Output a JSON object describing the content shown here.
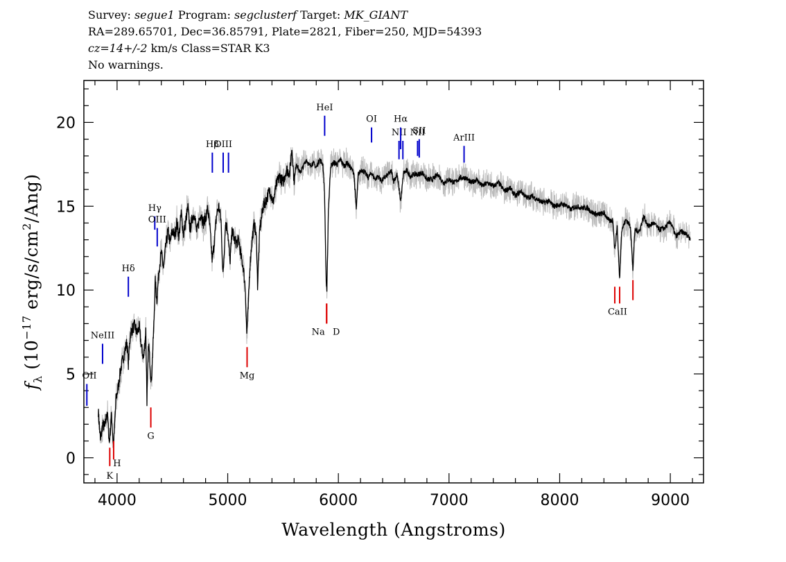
{
  "header": {
    "line1_a": "Survey: ",
    "survey": "segue1",
    "line1_b": " Program: ",
    "program": "segclusterf",
    "line1_c": " Target: ",
    "target": "MK_GIANT",
    "line2": "RA=289.65701, Dec=36.85791, Plate=2821, Fiber=250, MJD=54393",
    "line3_redshift": "cz=14+/-2",
    "line3_rest": " km/s Class=STAR K3",
    "line4": "No warnings."
  },
  "chart_data": {
    "type": "line",
    "xlabel": "Wavelength (Angstroms)",
    "ylabel_prefix": "f",
    "ylabel_sub": "λ",
    "ylabel_mid": " (10",
    "ylabel_exp": "−17",
    "ylabel_units": " erg/s/cm",
    "ylabel_sq": "2",
    "ylabel_end": "/Ang)",
    "xlim": [
      3700,
      9300
    ],
    "ylim": [
      -1.5,
      22.5
    ],
    "x_ticks": [
      4000,
      5000,
      6000,
      7000,
      8000,
      9000
    ],
    "y_ticks": [
      0,
      5,
      10,
      15,
      20
    ],
    "x_minor_step": 200,
    "y_minor_step": 1,
    "colors": {
      "spectrum": "#000000",
      "error": "#bbbbbb",
      "emission": "#0000cc",
      "absorption": "#dd0000"
    },
    "spectrum": [
      [
        3830,
        2.8
      ],
      [
        3850,
        1.0
      ],
      [
        3870,
        2.0
      ],
      [
        3890,
        1.8
      ],
      [
        3910,
        2.8
      ],
      [
        3930,
        0.9
      ],
      [
        3950,
        2.6
      ],
      [
        3968,
        0.6
      ],
      [
        3990,
        3.5
      ],
      [
        4010,
        4.2
      ],
      [
        4030,
        5.2
      ],
      [
        4050,
        5.8
      ],
      [
        4070,
        6.4
      ],
      [
        4090,
        6.9
      ],
      [
        4102,
        5.6
      ],
      [
        4120,
        7.4
      ],
      [
        4140,
        7.7
      ],
      [
        4160,
        7.9
      ],
      [
        4180,
        7.4
      ],
      [
        4200,
        7.8
      ],
      [
        4220,
        6.6
      ],
      [
        4240,
        5.9
      ],
      [
        4260,
        7.6
      ],
      [
        4270,
        3.4
      ],
      [
        4285,
        6.8
      ],
      [
        4300,
        5.4
      ],
      [
        4310,
        4.5
      ],
      [
        4330,
        7.5
      ],
      [
        4345,
        10.5
      ],
      [
        4360,
        9.4
      ],
      [
        4380,
        11.3
      ],
      [
        4400,
        12.2
      ],
      [
        4420,
        11.3
      ],
      [
        4440,
        12.6
      ],
      [
        4460,
        13.5
      ],
      [
        4480,
        12.8
      ],
      [
        4500,
        13.6
      ],
      [
        4520,
        13.2
      ],
      [
        4540,
        14.0
      ],
      [
        4560,
        13.2
      ],
      [
        4580,
        14.6
      ],
      [
        4600,
        13.3
      ],
      [
        4620,
        14.1
      ],
      [
        4640,
        14.9
      ],
      [
        4660,
        13.6
      ],
      [
        4680,
        14.3
      ],
      [
        4700,
        14.6
      ],
      [
        4720,
        13.4
      ],
      [
        4740,
        14.1
      ],
      [
        4760,
        14.6
      ],
      [
        4780,
        14.0
      ],
      [
        4800,
        14.3
      ],
      [
        4820,
        14.9
      ],
      [
        4840,
        13.6
      ],
      [
        4861,
        11.7
      ],
      [
        4880,
        13.0
      ],
      [
        4900,
        14.5
      ],
      [
        4920,
        15.0
      ],
      [
        4940,
        14.1
      ],
      [
        4957,
        10.8
      ],
      [
        4980,
        14.0
      ],
      [
        5000,
        13.6
      ],
      [
        5020,
        11.6
      ],
      [
        5040,
        13.6
      ],
      [
        5060,
        13.0
      ],
      [
        5080,
        12.8
      ],
      [
        5100,
        13.0
      ],
      [
        5120,
        12.0
      ],
      [
        5140,
        11.4
      ],
      [
        5160,
        10.0
      ],
      [
        5172,
        7.4
      ],
      [
        5183,
        8.6
      ],
      [
        5200,
        11.4
      ],
      [
        5220,
        13.0
      ],
      [
        5240,
        14.0
      ],
      [
        5260,
        13.0
      ],
      [
        5270,
        10.3
      ],
      [
        5290,
        13.6
      ],
      [
        5320,
        15.0
      ],
      [
        5350,
        15.4
      ],
      [
        5380,
        16.0
      ],
      [
        5410,
        15.2
      ],
      [
        5440,
        16.3
      ],
      [
        5470,
        16.8
      ],
      [
        5500,
        16.4
      ],
      [
        5530,
        17.2
      ],
      [
        5560,
        17.0
      ],
      [
        5580,
        18.5
      ],
      [
        5600,
        16.4
      ],
      [
        5620,
        17.6
      ],
      [
        5650,
        17.0
      ],
      [
        5680,
        17.3
      ],
      [
        5710,
        17.8
      ],
      [
        5740,
        17.4
      ],
      [
        5770,
        17.6
      ],
      [
        5800,
        17.3
      ],
      [
        5830,
        17.8
      ],
      [
        5860,
        17.5
      ],
      [
        5875,
        15.8
      ],
      [
        5890,
        10.5
      ],
      [
        5896,
        9.8
      ],
      [
        5910,
        14.8
      ],
      [
        5930,
        17.4
      ],
      [
        5960,
        17.6
      ],
      [
        5990,
        17.5
      ],
      [
        6020,
        17.8
      ],
      [
        6050,
        17.4
      ],
      [
        6080,
        17.6
      ],
      [
        6110,
        17.3
      ],
      [
        6140,
        17.0
      ],
      [
        6162,
        14.8
      ],
      [
        6180,
        16.9
      ],
      [
        6210,
        17.2
      ],
      [
        6240,
        17.0
      ],
      [
        6270,
        16.7
      ],
      [
        6300,
        17.0
      ],
      [
        6330,
        16.6
      ],
      [
        6360,
        16.8
      ],
      [
        6390,
        16.5
      ],
      [
        6420,
        16.7
      ],
      [
        6450,
        16.9
      ],
      [
        6480,
        17.1
      ],
      [
        6500,
        16.5
      ],
      [
        6530,
        16.9
      ],
      [
        6563,
        15.3
      ],
      [
        6590,
        17.0
      ],
      [
        6620,
        17.1
      ],
      [
        6650,
        16.8
      ],
      [
        6680,
        16.9
      ],
      [
        6720,
        16.9
      ],
      [
        6760,
        17.0
      ],
      [
        6800,
        16.6
      ],
      [
        6850,
        16.6
      ],
      [
        6900,
        16.9
      ],
      [
        6950,
        16.4
      ],
      [
        7000,
        16.6
      ],
      [
        7050,
        16.4
      ],
      [
        7100,
        16.7
      ],
      [
        7150,
        16.7
      ],
      [
        7200,
        16.4
      ],
      [
        7250,
        16.6
      ],
      [
        7300,
        16.2
      ],
      [
        7350,
        16.4
      ],
      [
        7400,
        16.2
      ],
      [
        7450,
        16.4
      ],
      [
        7500,
        15.9
      ],
      [
        7550,
        16.1
      ],
      [
        7600,
        15.6
      ],
      [
        7650,
        15.9
      ],
      [
        7700,
        15.5
      ],
      [
        7750,
        15.6
      ],
      [
        7800,
        15.4
      ],
      [
        7850,
        15.2
      ],
      [
        7900,
        15.3
      ],
      [
        7950,
        15.0
      ],
      [
        8000,
        15.1
      ],
      [
        8050,
        15.1
      ],
      [
        8100,
        14.8
      ],
      [
        8150,
        15.0
      ],
      [
        8200,
        14.9
      ],
      [
        8250,
        14.9
      ],
      [
        8300,
        14.6
      ],
      [
        8350,
        14.5
      ],
      [
        8400,
        14.6
      ],
      [
        8450,
        14.1
      ],
      [
        8480,
        14.2
      ],
      [
        8498,
        12.4
      ],
      [
        8520,
        13.8
      ],
      [
        8542,
        10.6
      ],
      [
        8560,
        13.6
      ],
      [
        8600,
        14.2
      ],
      [
        8640,
        13.8
      ],
      [
        8662,
        11.2
      ],
      [
        8680,
        13.6
      ],
      [
        8720,
        13.5
      ],
      [
        8760,
        14.4
      ],
      [
        8800,
        13.8
      ],
      [
        8850,
        14.0
      ],
      [
        8900,
        13.6
      ],
      [
        8950,
        13.7
      ],
      [
        9000,
        14.1
      ],
      [
        9050,
        13.2
      ],
      [
        9100,
        13.5
      ],
      [
        9150,
        13.3
      ],
      [
        9180,
        13.1
      ]
    ],
    "emission_lines": [
      {
        "label": "OII",
        "wave": 3727,
        "y": [
          3.1,
          4.4
        ]
      },
      {
        "label": "NeIII",
        "wave": 3869,
        "y": [
          5.6,
          6.8
        ]
      },
      {
        "label": "Hδ",
        "wave": 4102,
        "y": [
          9.6,
          10.8
        ]
      },
      {
        "label": "Hγ",
        "wave": 4341,
        "y": [
          13.6,
          14.4
        ]
      },
      {
        "label": "OIII",
        "wave": 4363,
        "y": [
          12.6,
          13.7
        ]
      },
      {
        "label": "Hβ",
        "wave": 4861,
        "y": [
          17.0,
          18.2
        ]
      },
      {
        "label": "OIII",
        "wave": 4959,
        "y": [
          17.0,
          18.2
        ]
      },
      {
        "label": "",
        "wave": 5007,
        "y": [
          17.0,
          18.2
        ]
      },
      {
        "label": "HeI",
        "wave": 5876,
        "y": [
          19.2,
          20.4
        ]
      },
      {
        "label": "OI",
        "wave": 6300,
        "y": [
          18.8,
          19.7
        ]
      },
      {
        "label": "NII",
        "wave": 6548,
        "y": [
          17.8,
          18.9
        ]
      },
      {
        "label": "Hα",
        "wave": 6563,
        "y": [
          18.4,
          19.7
        ]
      },
      {
        "label": "",
        "wave": 6583,
        "y": [
          17.8,
          18.9
        ]
      },
      {
        "label": "NII",
        "wave": 6716,
        "y": [
          18.0,
          18.9
        ]
      },
      {
        "label": "SII",
        "wave": 6731,
        "y": [
          17.9,
          19.0
        ]
      },
      {
        "label": "ArIII",
        "wave": 7136,
        "y": [
          17.6,
          18.6
        ]
      }
    ],
    "absorption_lines": [
      {
        "label": "K",
        "wave": 3934,
        "y": [
          -0.5,
          0.6
        ]
      },
      {
        "label": "H",
        "wave": 3969,
        "y": [
          -0.1,
          1.0
        ]
      },
      {
        "label": "G",
        "wave": 4305,
        "y": [
          1.8,
          3.0
        ]
      },
      {
        "label": "Mg",
        "wave": 5175,
        "y": [
          5.4,
          6.6
        ]
      },
      {
        "label": "Na",
        "wave": 5894,
        "y": [
          8.0,
          9.2
        ]
      },
      {
        "label": "D",
        "wave": 5894,
        "y": [
          8.0,
          9.2
        ]
      },
      {
        "label": "CaII",
        "wave": 8498,
        "y": [
          9.2,
          10.2
        ]
      },
      {
        "label": "",
        "wave": 8542,
        "y": [
          9.2,
          10.2
        ]
      },
      {
        "label": "",
        "wave": 8662,
        "y": [
          9.4,
          10.6
        ]
      }
    ]
  }
}
